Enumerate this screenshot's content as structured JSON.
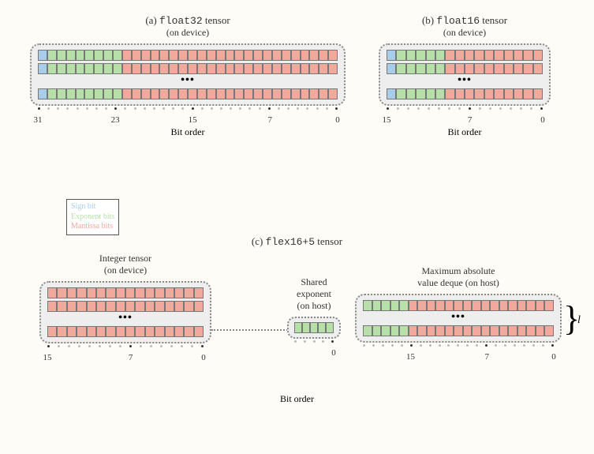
{
  "colors": {
    "sign": "#a8cde8",
    "exponent": "#b6e0a8",
    "mantissa": "#f0a99b",
    "box_bg": "#eeeeee",
    "border": "#888888",
    "bg": "#fdfcf7"
  },
  "legend": {
    "sign": "Sign bit",
    "exponent": "Exponent bits",
    "mantissa": "Mantissa bits"
  },
  "axis_label": "Bit order",
  "panels": {
    "a": {
      "label_prefix": "(a) ",
      "type": "float32",
      "label_suffix": " tensor",
      "sub": "(on device)",
      "bits": {
        "sign": 1,
        "exponent": 8,
        "mantissa": 23,
        "total": 32
      },
      "rows_shown": 3,
      "ellipsis_after_row": 2,
      "ticks": [
        31,
        23,
        15,
        7,
        0
      ]
    },
    "b": {
      "label_prefix": "(b) ",
      "type": "float16",
      "label_suffix": " tensor",
      "sub": "(on device)",
      "bits": {
        "sign": 1,
        "exponent": 5,
        "mantissa": 10,
        "total": 16
      },
      "rows_shown": 3,
      "ellipsis_after_row": 2,
      "ticks": [
        15,
        7,
        0
      ]
    },
    "c": {
      "label_prefix": "(c) ",
      "type": "flex16+5",
      "label_suffix": " tensor",
      "integer": {
        "title": "Integer tensor",
        "sub": "(on device)",
        "bits": {
          "mantissa": 16,
          "total": 16
        },
        "rows_shown": 3,
        "ellipsis_after_row": 2,
        "ticks": [
          15,
          7,
          0
        ]
      },
      "shared": {
        "title": "Shared",
        "sub1": "exponent",
        "sub2": "(on host)",
        "bits": {
          "exponent": 5,
          "total": 5
        },
        "ticks": [
          0
        ]
      },
      "deque": {
        "title": "Maximum absolute",
        "sub": "value deque (on host)",
        "bits": {
          "mantissa": 16,
          "exponent": 5,
          "total": 21
        },
        "rows_shown": 2,
        "ellipsis_after_row": 1,
        "ticks": [
          15,
          7,
          0
        ],
        "brace_label": "l"
      }
    }
  }
}
